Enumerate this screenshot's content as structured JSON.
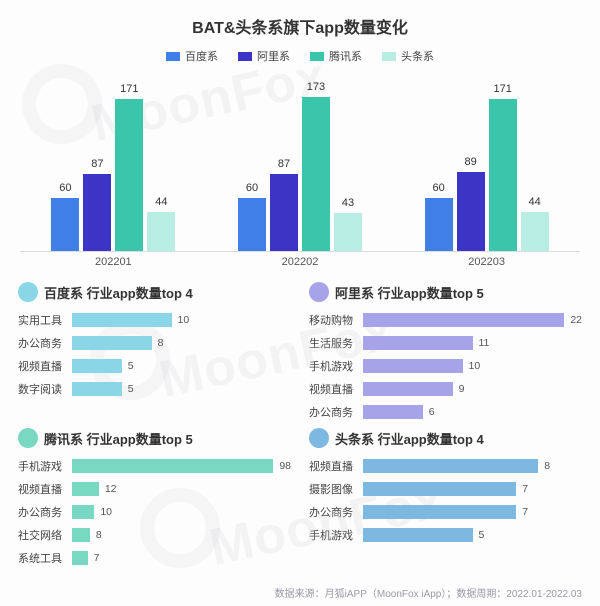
{
  "title": "BAT&头条系旗下app数量变化",
  "legend": [
    {
      "label": "百度系",
      "color": "#3f7fe6"
    },
    {
      "label": "阿里系",
      "color": "#3b34c4"
    },
    {
      "label": "腾讯系",
      "color": "#3bc6ab"
    },
    {
      "label": "头条系",
      "color": "#b7ede3"
    }
  ],
  "main_chart": {
    "type": "bar",
    "ymax": 180,
    "categories": [
      "202201",
      "202202",
      "202203"
    ],
    "series_colors": [
      "#3f7fe6",
      "#3b34c4",
      "#3bc6ab",
      "#b7ede3"
    ],
    "groups": [
      [
        60,
        87,
        171,
        44
      ],
      [
        60,
        87,
        173,
        43
      ],
      [
        60,
        89,
        171,
        44
      ]
    ]
  },
  "panels": [
    {
      "dot_color": "#8ad6e6",
      "title": "百度系 行业app数量top 4",
      "bar_color": "#8ad6e6",
      "max": 22,
      "rows": [
        {
          "cat": "实用工具",
          "val": 10
        },
        {
          "cat": "办公商务",
          "val": 8
        },
        {
          "cat": "视频直播",
          "val": 5
        },
        {
          "cat": "数字阅读",
          "val": 5
        }
      ]
    },
    {
      "dot_color": "#a7a3e8",
      "title": "阿里系 行业app数量top 5",
      "bar_color": "#a7a3e8",
      "max": 22,
      "rows": [
        {
          "cat": "移动购物",
          "val": 22
        },
        {
          "cat": "生活服务",
          "val": 11
        },
        {
          "cat": "手机游戏",
          "val": 10
        },
        {
          "cat": "视频直播",
          "val": 9
        },
        {
          "cat": "办公商务",
          "val": 6
        }
      ]
    },
    {
      "dot_color": "#79d8c2",
      "title": "腾讯系 行业app数量top 5",
      "bar_color": "#79d8c2",
      "max": 98,
      "rows": [
        {
          "cat": "手机游戏",
          "val": 98
        },
        {
          "cat": "视频直播",
          "val": 12
        },
        {
          "cat": "办公商务",
          "val": 10
        },
        {
          "cat": "社交网络",
          "val": 8
        },
        {
          "cat": "系统工具",
          "val": 7
        }
      ]
    },
    {
      "dot_color": "#7cb8e0",
      "title": "头条系 行业app数量top 4",
      "bar_color": "#7cb8e0",
      "max": 10,
      "rows": [
        {
          "cat": "视频直播",
          "val": 8
        },
        {
          "cat": "摄影图像",
          "val": 7
        },
        {
          "cat": "办公商务",
          "val": 7
        },
        {
          "cat": "手机游戏",
          "val": 5
        }
      ]
    }
  ],
  "footer": "数据来源：月狐iAPP（MoonFox iApp）；数据周期：2022.01-2022.03",
  "watermark_text": "MoonFox"
}
